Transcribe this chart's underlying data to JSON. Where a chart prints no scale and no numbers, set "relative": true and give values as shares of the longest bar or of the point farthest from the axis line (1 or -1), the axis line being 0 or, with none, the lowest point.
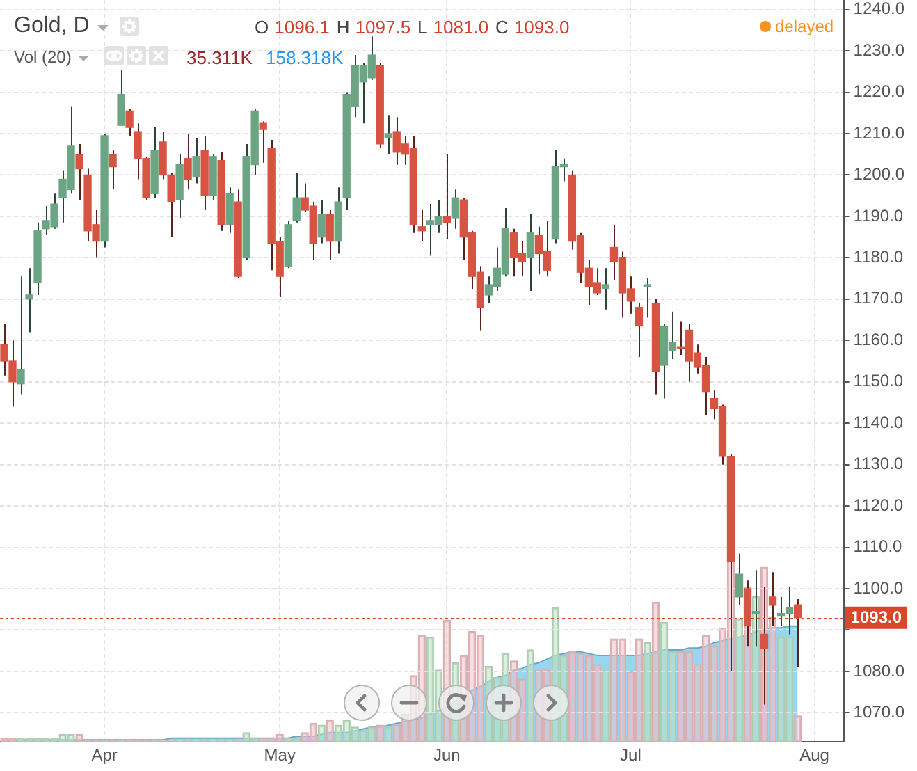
{
  "chart_data": [
    {
      "type": "candlestick",
      "title": "Gold, D",
      "annotations": [
        "O 1096.1 H 1097.5 L 1081.0 C 1093.0",
        "delayed"
      ],
      "tick_labels": "y",
      "categories": [
        null,
        null,
        null,
        null,
        null,
        null,
        null,
        null,
        null,
        null,
        null,
        null,
        null,
        null,
        null,
        null,
        null,
        null,
        null,
        null,
        null,
        null,
        null,
        null,
        null,
        null,
        null,
        null,
        null,
        null,
        null,
        null,
        null,
        null,
        null,
        null,
        null,
        null,
        null,
        null,
        null,
        null,
        null,
        null,
        null,
        null,
        null,
        null,
        null,
        null,
        null,
        null,
        null,
        null,
        null,
        null,
        null,
        null,
        null,
        null,
        null,
        null,
        null,
        null,
        null,
        null,
        null,
        null,
        null,
        null,
        null,
        null,
        null,
        null,
        null,
        null,
        null,
        null,
        null,
        null,
        null,
        null,
        null,
        null,
        null,
        null,
        null,
        null,
        null,
        null,
        null,
        null,
        null,
        null,
        null,
        null,
        null,
        null,
        null,
        null,
        null
      ],
      "ohlc": [
        [
          1159,
          1164,
          1151.5,
          1155
        ],
        [
          1155,
          1160,
          1144,
          1150
        ],
        [
          1149.5,
          1175.5,
          1147,
          1153
        ],
        [
          1170,
          1177.5,
          1162,
          1171
        ],
        [
          1174,
          1188.5,
          1171,
          1186.5
        ],
        [
          1187,
          1192.5,
          1185.5,
          1189
        ],
        [
          1187.5,
          1195.5,
          1187,
          1193
        ],
        [
          1194.5,
          1201,
          1188.5,
          1199
        ],
        [
          1196.5,
          1216.5,
          1195.5,
          1207
        ],
        [
          1205,
          1207.5,
          1194,
          1201.5
        ],
        [
          1200,
          1201.5,
          1184,
          1186.5
        ],
        [
          1188,
          1191.5,
          1180,
          1184
        ],
        [
          1184,
          1210,
          1182.5,
          1209.5
        ],
        [
          1205,
          1206,
          1196.5,
          1202
        ],
        [
          1212,
          1225.5,
          1212,
          1219.5
        ],
        [
          1215.5,
          1216,
          1209.5,
          1211.5
        ],
        [
          1210.5,
          1212.5,
          1199,
          1204
        ],
        [
          1204,
          1204.5,
          1194,
          1194.5
        ],
        [
          1195.5,
          1211.5,
          1194.5,
          1206
        ],
        [
          1208,
          1210.5,
          1199,
          1200
        ],
        [
          1200,
          1200.5,
          1185,
          1193.5
        ],
        [
          1194,
          1205,
          1189.5,
          1202.5
        ],
        [
          1204,
          1210,
          1196.5,
          1199
        ],
        [
          1199.5,
          1209,
          1198,
          1204.5
        ],
        [
          1206,
          1209.5,
          1191.5,
          1195
        ],
        [
          1195,
          1205,
          1194,
          1204.5
        ],
        [
          1203.5,
          1205.5,
          1186.5,
          1188
        ],
        [
          1188,
          1197,
          1186,
          1195.5
        ],
        [
          1193.5,
          1196.5,
          1175,
          1175.5
        ],
        [
          1180,
          1207.5,
          1179.5,
          1204.5
        ],
        [
          1202.5,
          1216,
          1200,
          1215.5
        ],
        [
          1212.5,
          1213,
          1203,
          1211
        ],
        [
          1206.5,
          1208.5,
          1177,
          1183.5
        ],
        [
          1184,
          1185,
          1170.5,
          1175.5
        ],
        [
          1178,
          1189,
          1177.5,
          1188
        ],
        [
          1189,
          1200.5,
          1188.5,
          1194.5
        ],
        [
          1194.5,
          1198,
          1191,
          1191.5
        ],
        [
          1192.5,
          1193.5,
          1179.5,
          1183.5
        ],
        [
          1185,
          1194,
          1183.5,
          1190.5
        ],
        [
          1190.5,
          1191.5,
          1179.5,
          1184
        ],
        [
          1184,
          1197,
          1181,
          1193.5
        ],
        [
          1194.5,
          1220,
          1191.5,
          1219.5
        ],
        [
          1216.5,
          1229,
          1214,
          1226.5
        ],
        [
          1222.5,
          1227,
          1212.5,
          1226.5
        ],
        [
          1223.5,
          1233.5,
          1223,
          1229
        ],
        [
          1226.5,
          1227,
          1206.5,
          1207.5
        ],
        [
          1209,
          1214.5,
          1205,
          1210
        ],
        [
          1210.5,
          1214,
          1202.5,
          1205.5
        ],
        [
          1207.5,
          1209.5,
          1202.5,
          1205
        ],
        [
          1206.5,
          1209.5,
          1186,
          1188
        ],
        [
          1187.5,
          1191.5,
          1184,
          1186.5
        ],
        [
          1188,
          1193,
          1180.5,
          1189
        ],
        [
          1188,
          1194,
          1186,
          1190
        ],
        [
          1190,
          1205,
          1184.5,
          1188.5
        ],
        [
          1189.5,
          1196.5,
          1187,
          1194.5
        ],
        [
          1194,
          1194.5,
          1179.5,
          1185
        ],
        [
          1186,
          1186.5,
          1172.5,
          1175.5
        ],
        [
          1176.5,
          1178,
          1162.5,
          1168
        ],
        [
          1171,
          1175.5,
          1169,
          1173.5
        ],
        [
          1173,
          1182.5,
          1172,
          1177.5
        ],
        [
          1176,
          1192,
          1175.5,
          1187
        ],
        [
          1186,
          1187,
          1175.5,
          1180
        ],
        [
          1181,
          1184,
          1175.5,
          1179
        ],
        [
          1180,
          1190.5,
          1172,
          1186
        ],
        [
          1185.5,
          1187.5,
          1176,
          1181
        ],
        [
          1181.5,
          1189,
          1175.5,
          1177
        ],
        [
          1184.5,
          1206,
          1183.5,
          1202
        ],
        [
          1202,
          1204,
          1198.5,
          1202.5
        ],
        [
          1200,
          1201,
          1182,
          1184
        ],
        [
          1185.5,
          1186,
          1174,
          1176.5
        ],
        [
          1177.5,
          1179.5,
          1168.5,
          1173
        ],
        [
          1174,
          1177.5,
          1171,
          1171.5
        ],
        [
          1172.5,
          1177.5,
          1167.5,
          1173.5
        ],
        [
          1182.5,
          1188,
          1174.5,
          1179
        ],
        [
          1180,
          1181.5,
          1165.5,
          1171.5
        ],
        [
          1172.5,
          1175.5,
          1166.5,
          1169.5
        ],
        [
          1168,
          1169,
          1156,
          1163.5
        ],
        [
          1173,
          1175,
          1165.5,
          1173.5
        ],
        [
          1169,
          1170,
          1147,
          1152.5
        ],
        [
          1154,
          1164,
          1146,
          1163.5
        ],
        [
          1157.5,
          1167,
          1155.5,
          1159.5
        ],
        [
          1158.5,
          1164.5,
          1156.5,
          1158
        ],
        [
          1162.5,
          1164,
          1150,
          1155
        ],
        [
          1157,
          1159,
          1152,
          1153.5
        ],
        [
          1154,
          1156,
          1142,
          1147.5
        ],
        [
          1146,
          1148,
          1141,
          1143.5
        ],
        [
          1144,
          1144.5,
          1130,
          1132
        ],
        [
          1132,
          1132.5,
          1080,
          1106.5
        ],
        [
          1098,
          1108.5,
          1096,
          1103.5
        ],
        [
          1100,
          1102,
          1086,
          1091
        ],
        [
          1094,
          1104.5,
          1086,
          1094.5
        ],
        [
          1089,
          1100.5,
          1072,
          1085.5
        ],
        [
          1098,
          1104,
          1091,
          1096
        ],
        [
          1093.5,
          1098,
          1091,
          1094
        ],
        [
          1094,
          1100.5,
          1089,
          1095.5
        ],
        [
          1096.1,
          1097.5,
          1081.0,
          1093.0
        ],
        null,
        null,
        null,
        null,
        null
      ],
      "colors": [
        "#d75442",
        "#d75442",
        "#6ba583",
        "#6ba583",
        "#6ba583",
        "#6ba583",
        "#6ba583",
        "#6ba583",
        "#6ba583",
        "#d75442",
        "#d75442",
        "#d75442",
        "#6ba583",
        "#d75442",
        "#6ba583",
        "#d75442",
        "#d75442",
        "#d75442",
        "#6ba583",
        "#d75442",
        "#d75442",
        "#6ba583",
        "#d75442",
        "#6ba583",
        "#d75442",
        "#6ba583",
        "#d75442",
        "#6ba583",
        "#d75442",
        "#6ba583",
        "#6ba583",
        "#d75442",
        "#d75442",
        "#d75442",
        "#6ba583",
        "#6ba583",
        "#d75442",
        "#d75442",
        "#6ba583",
        "#d75442",
        "#6ba583",
        "#6ba583",
        "#6ba583",
        "#6ba583",
        "#6ba583",
        "#d75442",
        "#6ba583",
        "#d75442",
        "#d75442",
        "#d75442",
        "#d75442",
        "#6ba583",
        "#6ba583",
        "#d75442",
        "#6ba583",
        "#d75442",
        "#d75442",
        "#d75442",
        "#6ba583",
        "#6ba583",
        "#6ba583",
        "#d75442",
        "#d75442",
        "#6ba583",
        "#d75442",
        "#d75442",
        "#6ba583",
        "#6ba583",
        "#d75442",
        "#d75442",
        "#d75442",
        "#d75442",
        "#6ba583",
        "#d75442",
        "#d75442",
        "#d75442",
        "#d75442",
        "#6ba583",
        "#d75442",
        "#6ba583",
        "#6ba583",
        "#d75442",
        "#d75442",
        "#d75442",
        "#d75442",
        "#d75442",
        "#d75442",
        "#d75442",
        "#6ba583",
        "#d75442",
        "#6ba583",
        "#d75442",
        "#d75442",
        "#6ba583",
        "#6ba583",
        "#d75442",
        null,
        null,
        null,
        null,
        null
      ],
      "ylim": [
        1063,
        1242.3
      ],
      "yticks": [
        {
          "value": 1070,
          "label": "1070.0"
        },
        {
          "value": 1080,
          "label": "1080.0"
        },
        {
          "value": 1090,
          "label": null
        },
        {
          "value": 1100,
          "label": "1100.0"
        },
        {
          "value": 1110,
          "label": "1110.0"
        },
        {
          "value": 1120,
          "label": "1120.0"
        },
        {
          "value": 1130,
          "label": "1130.0"
        },
        {
          "value": 1140,
          "label": "1140.0"
        },
        {
          "value": 1150,
          "label": "1150.0"
        },
        {
          "value": 1160,
          "label": "1160.0"
        },
        {
          "value": 1170,
          "label": "1170.0"
        },
        {
          "value": 1180,
          "label": "1180.0"
        },
        {
          "value": 1190,
          "label": "1190.0"
        },
        {
          "value": 1200,
          "label": "1200.0"
        },
        {
          "value": 1210,
          "label": "1210.0"
        },
        {
          "value": 1220,
          "label": "1220.0"
        },
        {
          "value": 1230,
          "label": "1230.0"
        },
        {
          "value": 1240,
          "label": "1240.0"
        }
      ],
      "ref_lines": [
        {
          "axis": "y",
          "value": 1093.0,
          "label": "1093.0",
          "color": "#d9472b",
          "line_style": "dotted"
        }
      ],
      "grid": "y"
    },
    {
      "type": "bar",
      "title": "Vol (20)",
      "annotations": [
        "35.311K",
        "158.318K"
      ],
      "relative": true,
      "tick_labels": "x",
      "grid": "x",
      "categories": [
        null,
        null,
        null,
        null,
        null,
        null,
        null,
        null,
        null,
        null,
        null,
        null,
        "Apr",
        null,
        null,
        null,
        null,
        null,
        null,
        null,
        null,
        null,
        null,
        null,
        null,
        null,
        null,
        null,
        null,
        null,
        null,
        null,
        null,
        "May",
        null,
        null,
        null,
        null,
        null,
        null,
        null,
        null,
        null,
        null,
        null,
        null,
        null,
        null,
        null,
        null,
        null,
        null,
        null,
        "Jun",
        null,
        null,
        null,
        null,
        null,
        null,
        null,
        null,
        null,
        null,
        null,
        null,
        null,
        null,
        null,
        null,
        null,
        null,
        null,
        null,
        null,
        "Jul",
        null,
        null,
        null,
        null,
        null,
        null,
        null,
        null,
        null,
        null,
        null,
        null,
        null,
        null,
        null,
        null,
        null,
        null,
        null,
        null,
        null,
        "Aug",
        null,
        null,
        null
      ],
      "series": [
        {
          "type": "bar",
          "values": [
            0.02,
            0.02,
            0.02,
            0.02,
            0.02,
            0.02,
            0.02,
            0.04,
            0.04,
            0.04,
            0.01,
            0.01,
            0.01,
            0.01,
            0.01,
            0.01,
            0.01,
            0.01,
            0.01,
            0.01,
            0.01,
            0.01,
            0.01,
            0.01,
            0.01,
            0.01,
            0.01,
            0.01,
            0.01,
            0.05,
            0.02,
            0.02,
            0.02,
            0.04,
            0.02,
            0.02,
            0.05,
            0.1,
            0.09,
            0.12,
            0.09,
            0.12,
            0.08,
            0.06,
            0.08,
            0.09,
            0.08,
            0.09,
            0.15,
            0.36,
            0.58,
            0.57,
            0.39,
            0.66,
            0.43,
            0.47,
            0.6,
            0.58,
            0.41,
            0.35,
            0.48,
            0.44,
            0.34,
            0.5,
            0.39,
            0.39,
            0.73,
            0.47,
            0.49,
            0.48,
            0.47,
            0.42,
            0.39,
            0.56,
            0.56,
            0.38,
            0.56,
            0.54,
            0.76,
            0.65,
            0.49,
            0.49,
            0.49,
            0.42,
            0.58,
            0.52,
            0.62,
            1,
            0.67,
            0.84,
            0.79,
            0.95,
            0.68,
            0.57,
            0.57,
            0.14,
            null,
            null,
            null,
            null,
            null
          ],
          "colors": [
            "#efc3c8",
            "#efc3c8",
            "#bfe3c6",
            "#bfe3c6",
            "#bfe3c6",
            "#bfe3c6",
            "#bfe3c6",
            "#bfe3c6",
            "#bfe3c6",
            "#efc3c8",
            "#efc3c8",
            "#efc3c8",
            "#bfe3c6",
            "#efc3c8",
            "#bfe3c6",
            "#efc3c8",
            "#efc3c8",
            "#efc3c8",
            "#bfe3c6",
            "#efc3c8",
            "#efc3c8",
            "#bfe3c6",
            "#efc3c8",
            "#bfe3c6",
            "#efc3c8",
            "#bfe3c6",
            "#efc3c8",
            "#bfe3c6",
            "#efc3c8",
            "#bfe3c6",
            "#bfe3c6",
            "#efc3c8",
            "#efc3c8",
            "#efc3c8",
            "#bfe3c6",
            "#bfe3c6",
            "#efc3c8",
            "#efc3c8",
            "#bfe3c6",
            "#efc3c8",
            "#bfe3c6",
            "#bfe3c6",
            "#bfe3c6",
            "#bfe3c6",
            "#bfe3c6",
            "#efc3c8",
            "#bfe3c6",
            "#efc3c8",
            "#efc3c8",
            "#efc3c8",
            "#efc3c8",
            "#bfe3c6",
            "#bfe3c6",
            "#efc3c8",
            "#bfe3c6",
            "#efc3c8",
            "#efc3c8",
            "#efc3c8",
            "#bfe3c6",
            "#bfe3c6",
            "#bfe3c6",
            "#efc3c8",
            "#efc3c8",
            "#bfe3c6",
            "#efc3c8",
            "#efc3c8",
            "#bfe3c6",
            "#bfe3c6",
            "#efc3c8",
            "#efc3c8",
            "#efc3c8",
            "#efc3c8",
            "#bfe3c6",
            "#efc3c8",
            "#efc3c8",
            "#efc3c8",
            "#efc3c8",
            "#bfe3c6",
            "#efc3c8",
            "#bfe3c6",
            "#bfe3c6",
            "#efc3c8",
            "#efc3c8",
            "#efc3c8",
            "#efc3c8",
            "#efc3c8",
            "#efc3c8",
            "#efc3c8",
            "#bfe3c6",
            "#efc3c8",
            "#bfe3c6",
            "#efc3c8",
            "#efc3c8",
            "#bfe3c6",
            "#bfe3c6",
            "#efc3c8",
            null,
            null,
            null,
            null,
            null
          ]
        },
        {
          "type": "area",
          "color": "#8dd0ef",
          "values": [
            0.01,
            0.01,
            0.01,
            0.01,
            0.01,
            0.01,
            0.01,
            0.01,
            0.01,
            0.01,
            0.01,
            0.01,
            0.01,
            0.01,
            0.01,
            0.01,
            0.01,
            0.01,
            0.01,
            0.01,
            0.02,
            0.02,
            0.02,
            0.02,
            0.02,
            0.02,
            0.02,
            0.02,
            0.02,
            0.02,
            0.02,
            0.02,
            0.02,
            0.02,
            0.02,
            0.03,
            0.03,
            0.03,
            0.04,
            0.05,
            0.05,
            0.05,
            0.06,
            0.07,
            0.08,
            0.08,
            0.09,
            0.1,
            0.11,
            0.12,
            0.13,
            0.15,
            0.17,
            0.19,
            0.22,
            0.25,
            0.28,
            0.3,
            0.33,
            0.35,
            0.36,
            0.39,
            0.4,
            0.42,
            0.43,
            0.45,
            0.47,
            0.48,
            0.49,
            0.49,
            0.48,
            0.47,
            0.47,
            0.47,
            0.47,
            0.47,
            0.47,
            0.48,
            0.49,
            0.5,
            0.5,
            0.5,
            0.51,
            0.51,
            0.52,
            0.54,
            0.55,
            0.56,
            0.57,
            0.58,
            0.6,
            0.61,
            0.62,
            0.62,
            0.63,
            0.63,
            null,
            null,
            null,
            null,
            null
          ]
        }
      ]
    }
  ]
}
